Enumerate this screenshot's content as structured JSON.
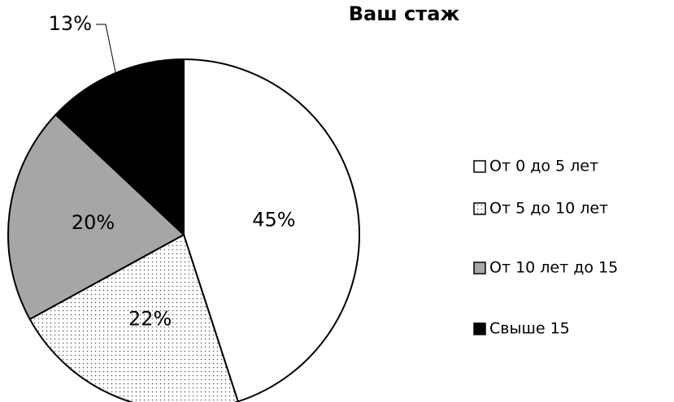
{
  "chart_data": {
    "type": "pie",
    "title": "Ваш стаж",
    "categories": [
      "От 0 до 5 лет",
      "От 5 до 10 лет",
      "От 10 лет до 15",
      "Свыше 15"
    ],
    "values": [
      45,
      22,
      20,
      13
    ],
    "value_labels": [
      "45%",
      "22%",
      "20%",
      "13%"
    ],
    "colors": [
      "#ffffff",
      "#ffffff",
      "#a6a6a6",
      "#000000"
    ],
    "dotted": [
      false,
      true,
      false,
      false
    ],
    "legend": "right"
  }
}
